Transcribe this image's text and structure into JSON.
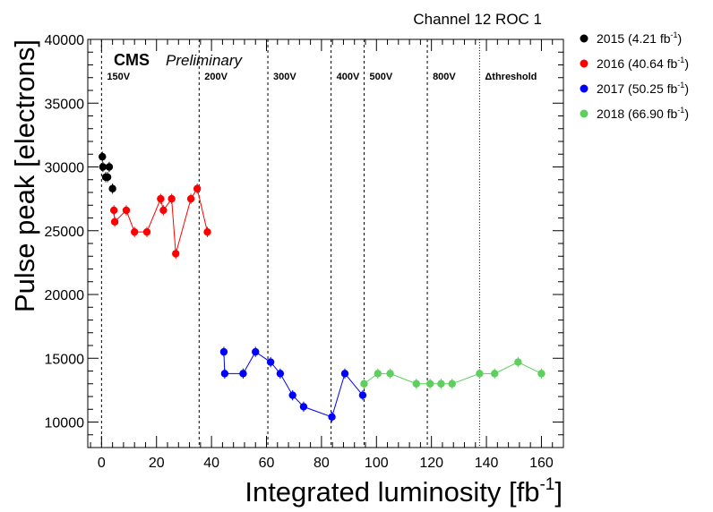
{
  "header": {
    "channel_label": "Channel 12 ROC 1",
    "cms_label": "CMS",
    "preliminary_label": "Preliminary"
  },
  "chart_data": {
    "type": "scatter",
    "title": "Channel 12 ROC 1",
    "xlabel": "Integrated luminosity [fb",
    "xlabel_sup": "-1",
    "xlabel_close": "]",
    "ylabel": "Pulse peak [electrons]",
    "xlim": [
      -5,
      168
    ],
    "ylim": [
      8000,
      40000
    ],
    "x_ticks": [
      0,
      20,
      40,
      60,
      80,
      100,
      120,
      140,
      160
    ],
    "x_tick_labels": [
      "0",
      "20",
      "40",
      "60",
      "80",
      "100",
      "120",
      "140",
      "160"
    ],
    "y_ticks": [
      10000,
      15000,
      20000,
      25000,
      30000,
      35000,
      40000
    ],
    "y_tick_labels": [
      "10000",
      "15000",
      "20000",
      "25000",
      "30000",
      "35000",
      "40000"
    ],
    "error_bar": 400,
    "legend_position": "right",
    "vlines": [
      {
        "x": 0,
        "label": "150V",
        "style": "dashed"
      },
      {
        "x": 35.5,
        "label": "200V",
        "style": "dashed"
      },
      {
        "x": 60.5,
        "label": "300V",
        "style": "dashed"
      },
      {
        "x": 83.5,
        "label": "400V",
        "style": "dashed"
      },
      {
        "x": 95.5,
        "label": "500V",
        "style": "dashed"
      },
      {
        "x": 118.5,
        "label": "800V",
        "style": "dashed"
      },
      {
        "x": 137.5,
        "label": "Δthreshold",
        "style": "dotted"
      }
    ],
    "series": [
      {
        "name": "2015",
        "legend_prefix": "2015 (4.21 fb",
        "legend_sup": "-1",
        "legend_suffix": ")",
        "color": "#000000",
        "connected": false,
        "x": [
          0.3,
          0.5,
          1.5,
          2.2,
          2.8,
          4.0
        ],
        "y": [
          30800,
          30000,
          29200,
          29200,
          30000,
          28300
        ]
      },
      {
        "name": "2016",
        "legend_prefix": "2016 (40.64 fb",
        "legend_sup": "-1",
        "legend_suffix": ")",
        "color": "#ff0000",
        "connected": true,
        "x": [
          4.5,
          4.8,
          9.0,
          12.0,
          16.5,
          21.5,
          22.5,
          25.5,
          27.0,
          32.5,
          34.8,
          38.5
        ],
        "y": [
          26600,
          25700,
          26600,
          24900,
          24900,
          27500,
          26600,
          27500,
          23200,
          27500,
          28300,
          24900
        ]
      },
      {
        "name": "2017",
        "legend_prefix": "2017 (50.25 fb",
        "legend_sup": "-1",
        "legend_suffix": ")",
        "color": "#0000ff",
        "connected": true,
        "x": [
          44.5,
          44.8,
          51.5,
          56.0,
          61.5,
          65.0,
          69.5,
          73.5,
          83.8,
          88.5,
          95.0
        ],
        "y": [
          15500,
          13800,
          13800,
          15500,
          14700,
          13800,
          12100,
          11200,
          10400,
          13800,
          12100
        ]
      },
      {
        "name": "2018",
        "legend_prefix": "2018 (66.90 fb",
        "legend_sup": "-1",
        "legend_suffix": ")",
        "color": "#5ccf5c",
        "connected": true,
        "x": [
          95.5,
          100.5,
          105.0,
          114.5,
          119.5,
          123.5,
          127.5,
          137.5,
          143.0,
          151.5,
          160.0
        ],
        "y": [
          13000,
          13800,
          13800,
          13000,
          13000,
          13000,
          13000,
          13800,
          13800,
          14700,
          13800
        ]
      }
    ]
  }
}
